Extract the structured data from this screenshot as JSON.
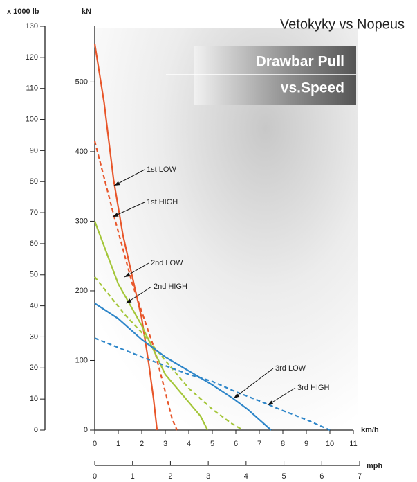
{
  "chart_data": {
    "type": "line",
    "title": "Vetokyky vs Nopeus",
    "banner": [
      "Drawbar Pull",
      "vs.Speed"
    ],
    "ylabel": "kN",
    "y2label": "x 1000 lb",
    "xlabel": "km/h",
    "x2label": "mph",
    "xlim": [
      0,
      11
    ],
    "xticks": [
      0,
      1,
      2,
      3,
      4,
      5,
      6,
      7,
      8,
      9,
      10,
      11
    ],
    "x2lim": [
      0,
      7
    ],
    "x2ticks": [
      0,
      1,
      2,
      3,
      4,
      5,
      6,
      7
    ],
    "ylim": [
      0,
      578
    ],
    "yticks": [
      0,
      100,
      200,
      300,
      400,
      500
    ],
    "y2lim": [
      0,
      130
    ],
    "y2ticks": [
      0,
      10,
      20,
      30,
      40,
      50,
      60,
      70,
      80,
      90,
      100,
      110,
      120,
      130
    ],
    "series": [
      {
        "name": "1st LOW",
        "color": "#e8562a",
        "dashed": false,
        "x": [
          0,
          0.4,
          0.8,
          1.2,
          1.6,
          2.0,
          2.3,
          2.5,
          2.65
        ],
        "values": [
          555,
          470,
          360,
          280,
          220,
          160,
          95,
          45,
          0
        ]
      },
      {
        "name": "1st HIGH",
        "color": "#e8562a",
        "dashed": true,
        "x": [
          0,
          0.8,
          1.6,
          2.0,
          2.5,
          3.0,
          3.3,
          3.5
        ],
        "values": [
          415,
          310,
          210,
          170,
          120,
          55,
          15,
          0
        ]
      },
      {
        "name": "2nd LOW",
        "color": "#a4c639",
        "dashed": false,
        "x": [
          0,
          1,
          2,
          3,
          4,
          4.5,
          4.8
        ],
        "values": [
          300,
          210,
          150,
          80,
          40,
          20,
          0
        ]
      },
      {
        "name": "2nd HIGH",
        "color": "#a4c639",
        "dashed": true,
        "x": [
          0,
          1.3,
          2,
          3,
          4,
          5,
          5.8,
          6.3
        ],
        "values": [
          220,
          165,
          140,
          100,
          60,
          30,
          10,
          0
        ]
      },
      {
        "name": "3rd LOW",
        "color": "#2e86c9",
        "dashed": false,
        "x": [
          0,
          1,
          2,
          3,
          4,
          5,
          5.9,
          6.5,
          7,
          7.5
        ],
        "values": [
          182,
          160,
          130,
          105,
          85,
          65,
          45,
          30,
          15,
          0
        ]
      },
      {
        "name": "3rd HIGH",
        "color": "#2e86c9",
        "dashed": true,
        "x": [
          0,
          2,
          4,
          5,
          6,
          7,
          8,
          9,
          10
        ],
        "values": [
          132,
          105,
          80,
          70,
          55,
          42,
          28,
          15,
          0
        ]
      }
    ]
  }
}
